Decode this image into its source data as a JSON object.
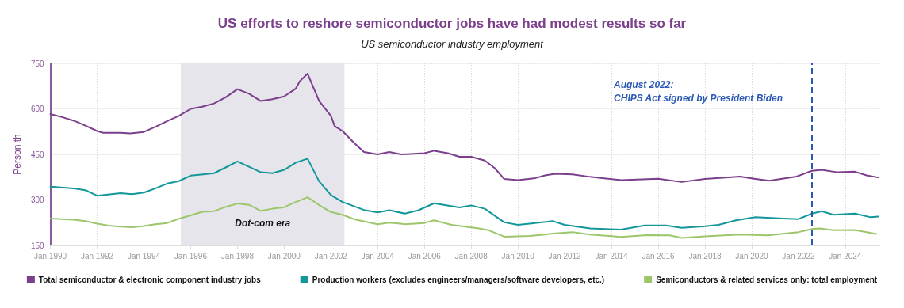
{
  "chart_data": {
    "type": "line",
    "title": "US efforts to reshore semiconductor jobs have had modest results so far",
    "subtitle": "US semiconductor industry employment",
    "ylabel": "Person th",
    "xlim": [
      "1990-01",
      "2025-07"
    ],
    "xticks": [
      {
        "value": "1990-01",
        "label": "Jan 1990"
      },
      {
        "value": "1992-01",
        "label": "Jan 1992"
      },
      {
        "value": "1994-01",
        "label": "Jan 1994"
      },
      {
        "value": "1996-01",
        "label": "Jan 1996"
      },
      {
        "value": "1998-01",
        "label": "Jan 1998"
      },
      {
        "value": "2000-01",
        "label": "Jan 2000"
      },
      {
        "value": "2002-01",
        "label": "Jan 2002"
      },
      {
        "value": "2004-01",
        "label": "Jan 2004"
      },
      {
        "value": "2006-01",
        "label": "Jan 2006"
      },
      {
        "value": "2008-01",
        "label": "Jan 2008"
      },
      {
        "value": "2010-01",
        "label": "Jan 2010"
      },
      {
        "value": "2012-01",
        "label": "Jan 2012"
      },
      {
        "value": "2014-01",
        "label": "Jan 2014"
      },
      {
        "value": "2016-01",
        "label": "Jan 2016"
      },
      {
        "value": "2018-01",
        "label": "Jan 2018"
      },
      {
        "value": "2020-01",
        "label": "Jan 2020"
      },
      {
        "value": "2022-01",
        "label": "Jan 2022"
      },
      {
        "value": "2024-01",
        "label": "Jan 2024"
      }
    ],
    "ylim": [
      150,
      750
    ],
    "yticks": [
      150,
      300,
      450,
      600,
      750
    ],
    "grid": true,
    "legend": "bottom",
    "marker": "none",
    "line_style": "solid",
    "series": [
      {
        "name": "Total semiconductor & electronic component industry jobs",
        "color": "#7b3f8c",
        "x": [
          "1990-01",
          "1990-07",
          "1991-01",
          "1991-07",
          "1992-01",
          "1992-04",
          "1993-01",
          "1993-06",
          "1994-01",
          "1994-07",
          "1995-01",
          "1995-07",
          "1996-01",
          "1996-07",
          "1997-01",
          "1997-07",
          "1998-01",
          "1998-07",
          "1999-01",
          "1999-07",
          "2000-01",
          "2000-07",
          "2000-09",
          "2001-01",
          "2001-07",
          "2002-01",
          "2002-03",
          "2002-07",
          "2003-01",
          "2003-06",
          "2004-01",
          "2004-07",
          "2005-01",
          "2006-01",
          "2006-06",
          "2007-01",
          "2007-07",
          "2008-01",
          "2008-08",
          "2009-01",
          "2009-06",
          "2010-01",
          "2010-10",
          "2011-03",
          "2011-08",
          "2012-05",
          "2013-02",
          "2014-06",
          "2016-01",
          "2017-01",
          "2018-01",
          "2019-07",
          "2020-03",
          "2020-10",
          "2021-12",
          "2022-08",
          "2023-01",
          "2023-09",
          "2024-06",
          "2024-12",
          "2025-06"
        ],
        "values": [
          583,
          573,
          561,
          545,
          527,
          521,
          521,
          519,
          524,
          541,
          560,
          577,
          600,
          607,
          618,
          638,
          665,
          650,
          626,
          632,
          641,
          667,
          691,
          716,
          626,
          577,
          543,
          527,
          487,
          458,
          450,
          458,
          450,
          454,
          462,
          454,
          442,
          442,
          430,
          405,
          369,
          365,
          372,
          381,
          386,
          384,
          376,
          365,
          370,
          359,
          369,
          377,
          369,
          363,
          377,
          396,
          399,
          391,
          393,
          381,
          374
        ]
      },
      {
        "name": "Production workers (excludes engineers/managers/software developers, etc.)",
        "color": "#13979b",
        "x": [
          "1990-01",
          "1991-01",
          "1991-07",
          "1992-01",
          "1993-01",
          "1993-07",
          "1994-01",
          "1994-07",
          "1995-01",
          "1995-07",
          "1996-01",
          "1997-01",
          "1997-07",
          "1998-01",
          "1998-07",
          "1999-01",
          "1999-07",
          "2000-01",
          "2000-07",
          "2001-01",
          "2001-07",
          "2002-01",
          "2002-07",
          "2003-06",
          "2004-01",
          "2004-07",
          "2005-03",
          "2005-10",
          "2006-06",
          "2007-07",
          "2008-01",
          "2008-08",
          "2009-06",
          "2010-01",
          "2010-07",
          "2011-07",
          "2012-01",
          "2013-02",
          "2014-06",
          "2015-06",
          "2016-05",
          "2017-01",
          "2018-01",
          "2018-08",
          "2019-05",
          "2020-03",
          "2021-05",
          "2022-01",
          "2022-08",
          "2023-01",
          "2023-07",
          "2024-06",
          "2025-02",
          "2025-06"
        ],
        "values": [
          344,
          338,
          332,
          314,
          322,
          319,
          324,
          338,
          354,
          362,
          380,
          388,
          407,
          427,
          409,
          391,
          388,
          399,
          423,
          436,
          361,
          316,
          293,
          267,
          259,
          266,
          255,
          266,
          289,
          275,
          282,
          271,
          226,
          218,
          222,
          230,
          218,
          206,
          202,
          216,
          216,
          208,
          213,
          218,
          233,
          243,
          239,
          237,
          255,
          263,
          251,
          255,
          243,
          245
        ]
      },
      {
        "name": "Semiconductors & related services only: total employment",
        "color": "#9dc66b",
        "x": [
          "1990-01",
          "1991-01",
          "1991-07",
          "1992-01",
          "1992-07",
          "1993-01",
          "1993-07",
          "1994-01",
          "1994-07",
          "1995-01",
          "1995-07",
          "1996-01",
          "1996-07",
          "1997-01",
          "1997-07",
          "1998-01",
          "1998-07",
          "1999-01",
          "1999-07",
          "2000-01",
          "2000-07",
          "2001-01",
          "2001-07",
          "2002-01",
          "2002-07",
          "2003-01",
          "2004-01",
          "2004-07",
          "2005-03",
          "2006-01",
          "2006-06",
          "2007-03",
          "2008-05",
          "2008-10",
          "2009-06",
          "2010-07",
          "2011-03",
          "2011-07",
          "2012-05",
          "2013-02",
          "2014-06",
          "2015-07",
          "2016-07",
          "2017-01",
          "2018-01",
          "2019-07",
          "2020-09",
          "2022-01",
          "2022-08",
          "2022-12",
          "2023-07",
          "2024-06",
          "2025-05"
        ],
        "values": [
          239,
          235,
          230,
          222,
          215,
          212,
          210,
          214,
          220,
          224,
          238,
          249,
          261,
          263,
          277,
          288,
          284,
          264,
          271,
          276,
          293,
          309,
          283,
          260,
          251,
          236,
          220,
          225,
          220,
          224,
          233,
          218,
          206,
          200,
          179,
          181,
          186,
          189,
          194,
          186,
          178,
          184,
          183,
          175,
          180,
          186,
          183,
          194,
          204,
          206,
          200,
          201,
          188
        ]
      }
    ],
    "bands": [
      {
        "axis": "x",
        "from": "1995-08",
        "to": "2002-08",
        "label": "Dot-com era",
        "color": "#e6e5eb"
      }
    ],
    "ref_lines": [
      {
        "axis": "x",
        "value": "2022-08",
        "label": "August 2022:\nCHIPS Act signed by President Biden",
        "color": "#2a58b5",
        "line_style": "dashed"
      }
    ]
  }
}
